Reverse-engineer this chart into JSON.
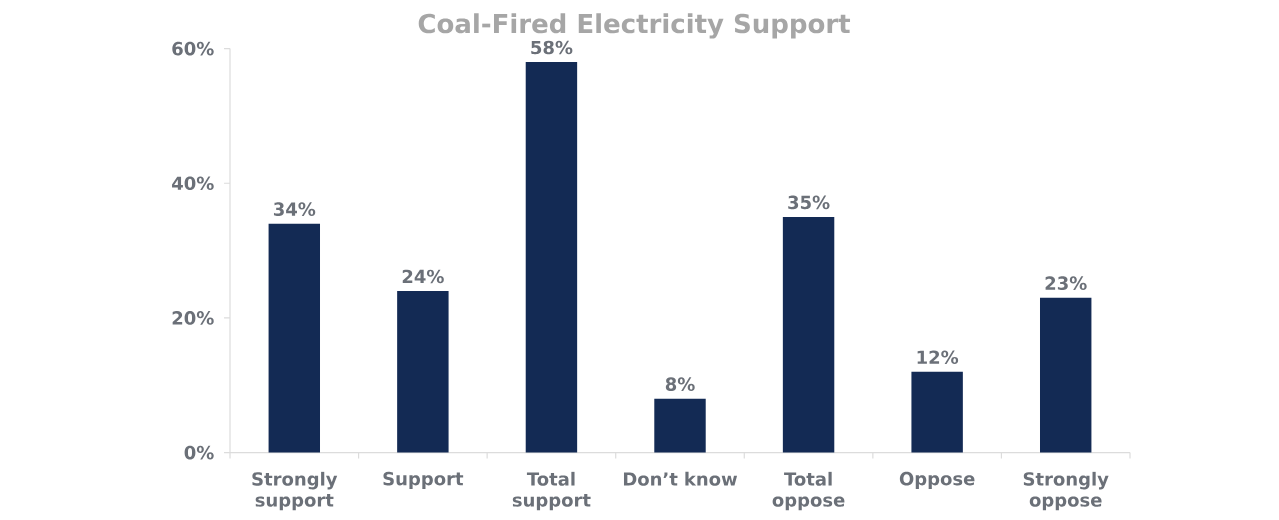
{
  "chart_data": {
    "type": "bar",
    "title": "Coal-Fired Electricity Support",
    "categories": [
      "Strongly support",
      "Support",
      "Total support",
      "Don’t know",
      "Total oppose",
      "Oppose",
      "Strongly oppose"
    ],
    "values": [
      34,
      24,
      58,
      8,
      35,
      12,
      23
    ],
    "value_labels": [
      "34%",
      "24%",
      "58%",
      "8%",
      "35%",
      "12%",
      "23%"
    ],
    "color": "#132a54",
    "ylim": [
      0,
      60
    ],
    "yticks": [
      {
        "value": 0,
        "label": "0%"
      },
      {
        "value": 20,
        "label": "20%"
      },
      {
        "value": 40,
        "label": "40%"
      },
      {
        "value": 60,
        "label": "60%"
      }
    ]
  }
}
